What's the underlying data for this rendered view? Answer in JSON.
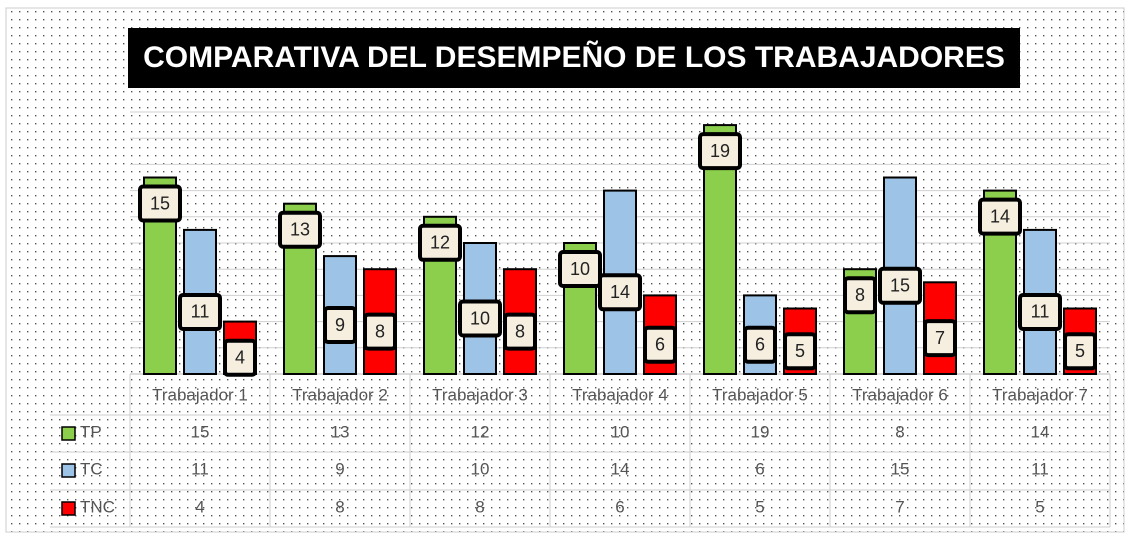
{
  "chart_data": {
    "type": "bar",
    "title": "COMPARATIVA DEL DESEMPEÑO DE LOS TRABAJADORES",
    "categories": [
      "Trabajador 1",
      "Trabajador 2",
      "Trabajador 3",
      "Trabajador 4",
      "Trabajador 5",
      "Trabajador 6",
      "Trabajador 7"
    ],
    "series": [
      {
        "name": "TP",
        "color": "#8ccf4d",
        "values": [
          15,
          13,
          12,
          10,
          19,
          8,
          14
        ]
      },
      {
        "name": "TC",
        "color": "#9dc3e6",
        "values": [
          11,
          9,
          10,
          14,
          6,
          15,
          11
        ]
      },
      {
        "name": "TNC",
        "color": "#ff0000",
        "values": [
          4,
          8,
          8,
          6,
          5,
          7,
          5
        ]
      }
    ],
    "ylim": [
      0,
      20
    ],
    "yticks": [
      0,
      2,
      4,
      6,
      8,
      10,
      12,
      14,
      16,
      18,
      20
    ],
    "grid": true
  }
}
